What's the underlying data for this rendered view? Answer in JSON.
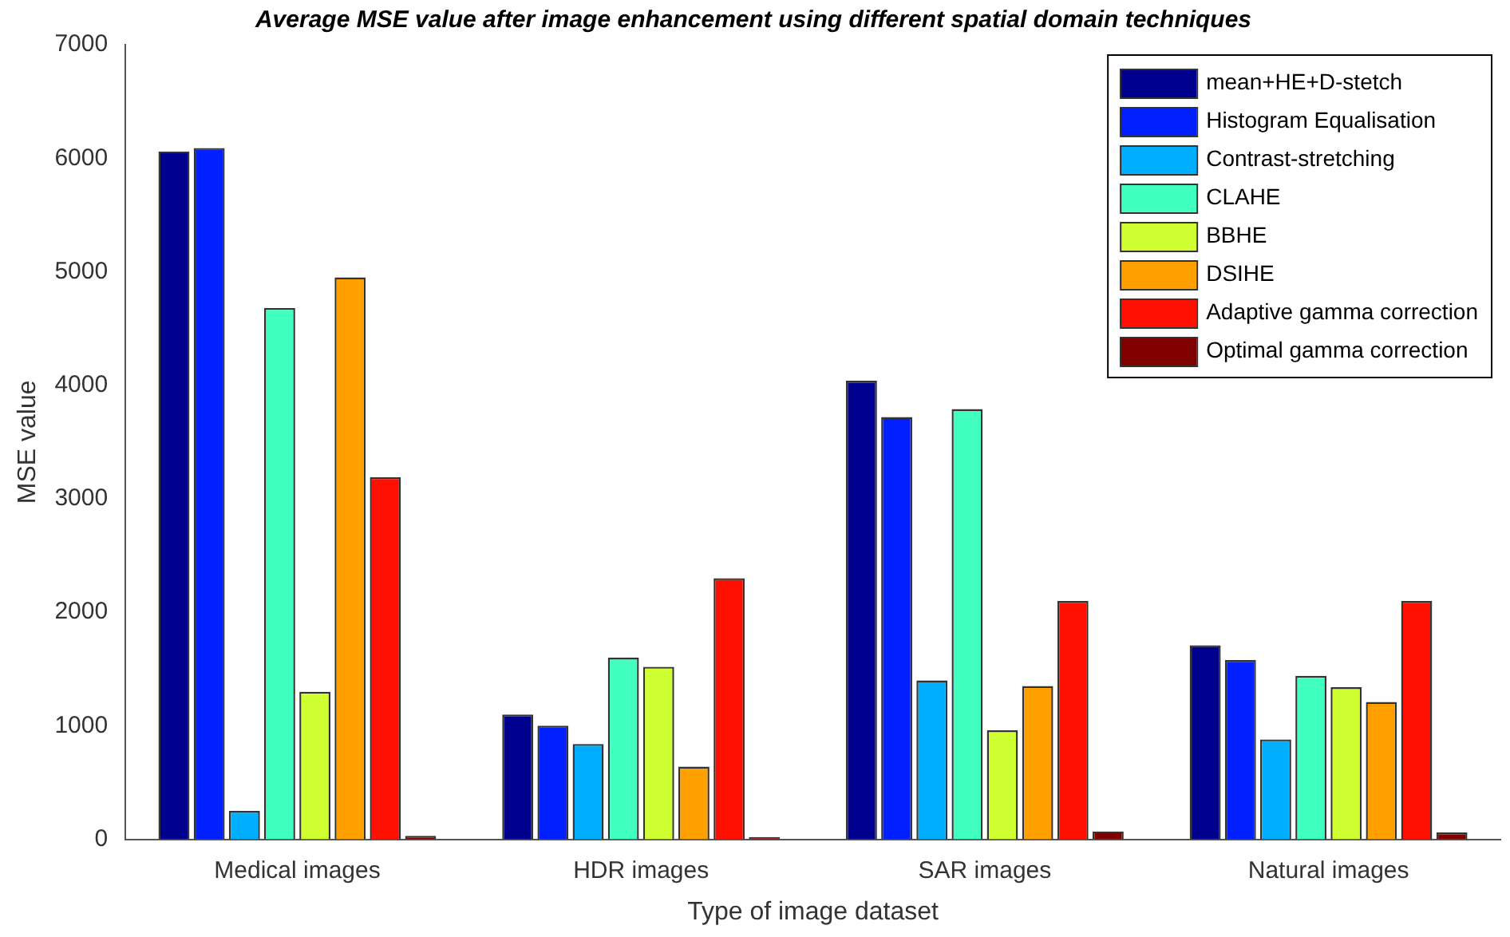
{
  "chart_data": {
    "type": "bar",
    "title": "Average MSE value after image enhancement using different spatial domain techniques",
    "xlabel": "Type of image dataset",
    "ylabel": "MSE value",
    "categories": [
      "Medical images",
      "HDR images",
      "SAR images",
      "Natural images"
    ],
    "series": [
      {
        "name": "mean+HE+D-stetch",
        "color": "#00008f",
        "values": [
          6060,
          1100,
          4040,
          1710
        ]
      },
      {
        "name": "Histogram Equalisation",
        "color": "#0020ff",
        "values": [
          6090,
          1000,
          3720,
          1580
        ]
      },
      {
        "name": "Contrast-stretching",
        "color": "#00afff",
        "values": [
          250,
          840,
          1400,
          880
        ]
      },
      {
        "name": "CLAHE",
        "color": "#40ffbf",
        "values": [
          4680,
          1600,
          3790,
          1440
        ]
      },
      {
        "name": "BBHE",
        "color": "#cfff30",
        "values": [
          1300,
          1520,
          960,
          1340
        ]
      },
      {
        "name": "DSIHE",
        "color": "#ff9f00",
        "values": [
          4950,
          640,
          1350,
          1210
        ]
      },
      {
        "name": "Adaptive gamma correction",
        "color": "#ff1000",
        "values": [
          3190,
          2300,
          2100,
          2100
        ]
      },
      {
        "name": "Optimal gamma correction",
        "color": "#800000",
        "values": [
          30,
          20,
          70,
          60
        ]
      }
    ],
    "ylim": [
      0,
      7000
    ],
    "yticks": [
      0,
      1000,
      2000,
      3000,
      4000,
      5000,
      6000,
      7000
    ],
    "grid": false,
    "legend": "top right"
  }
}
